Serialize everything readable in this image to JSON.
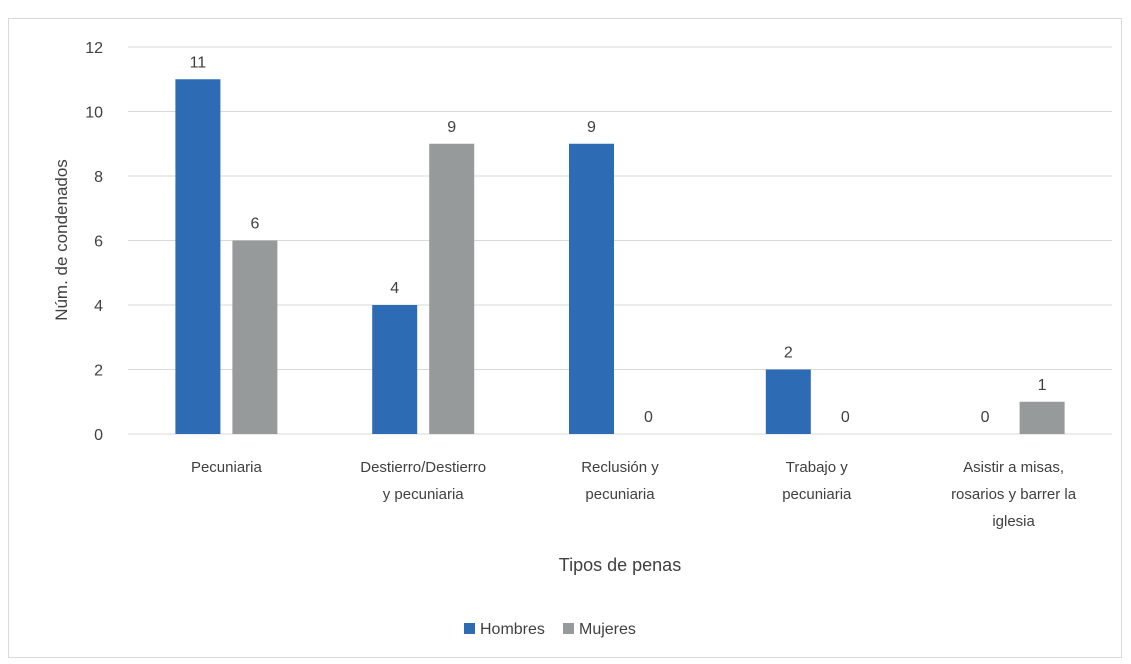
{
  "chart_data": {
    "type": "bar",
    "title": "",
    "xlabel": "Tipos de penas",
    "ylabel": "Núm. de condenados",
    "ylim": [
      0,
      12
    ],
    "yticks": [
      0,
      2,
      4,
      6,
      8,
      10,
      12
    ],
    "grid": true,
    "legend_position": "bottom",
    "categories": [
      [
        "Pecuniaria"
      ],
      [
        "Destierro/Destierro",
        "y pecuniaria"
      ],
      [
        "Reclusión y",
        "pecuniaria"
      ],
      [
        "Trabajo y",
        "pecuniaria"
      ],
      [
        "Asistir a misas,",
        "rosarios y barrer la",
        "iglesia"
      ]
    ],
    "series": [
      {
        "name": "Hombres",
        "color": "#2e6bb5",
        "values": [
          11,
          4,
          9,
          2,
          0
        ]
      },
      {
        "name": "Mujeres",
        "color": "#979a9a",
        "values": [
          6,
          9,
          0,
          0,
          1
        ]
      }
    ]
  }
}
